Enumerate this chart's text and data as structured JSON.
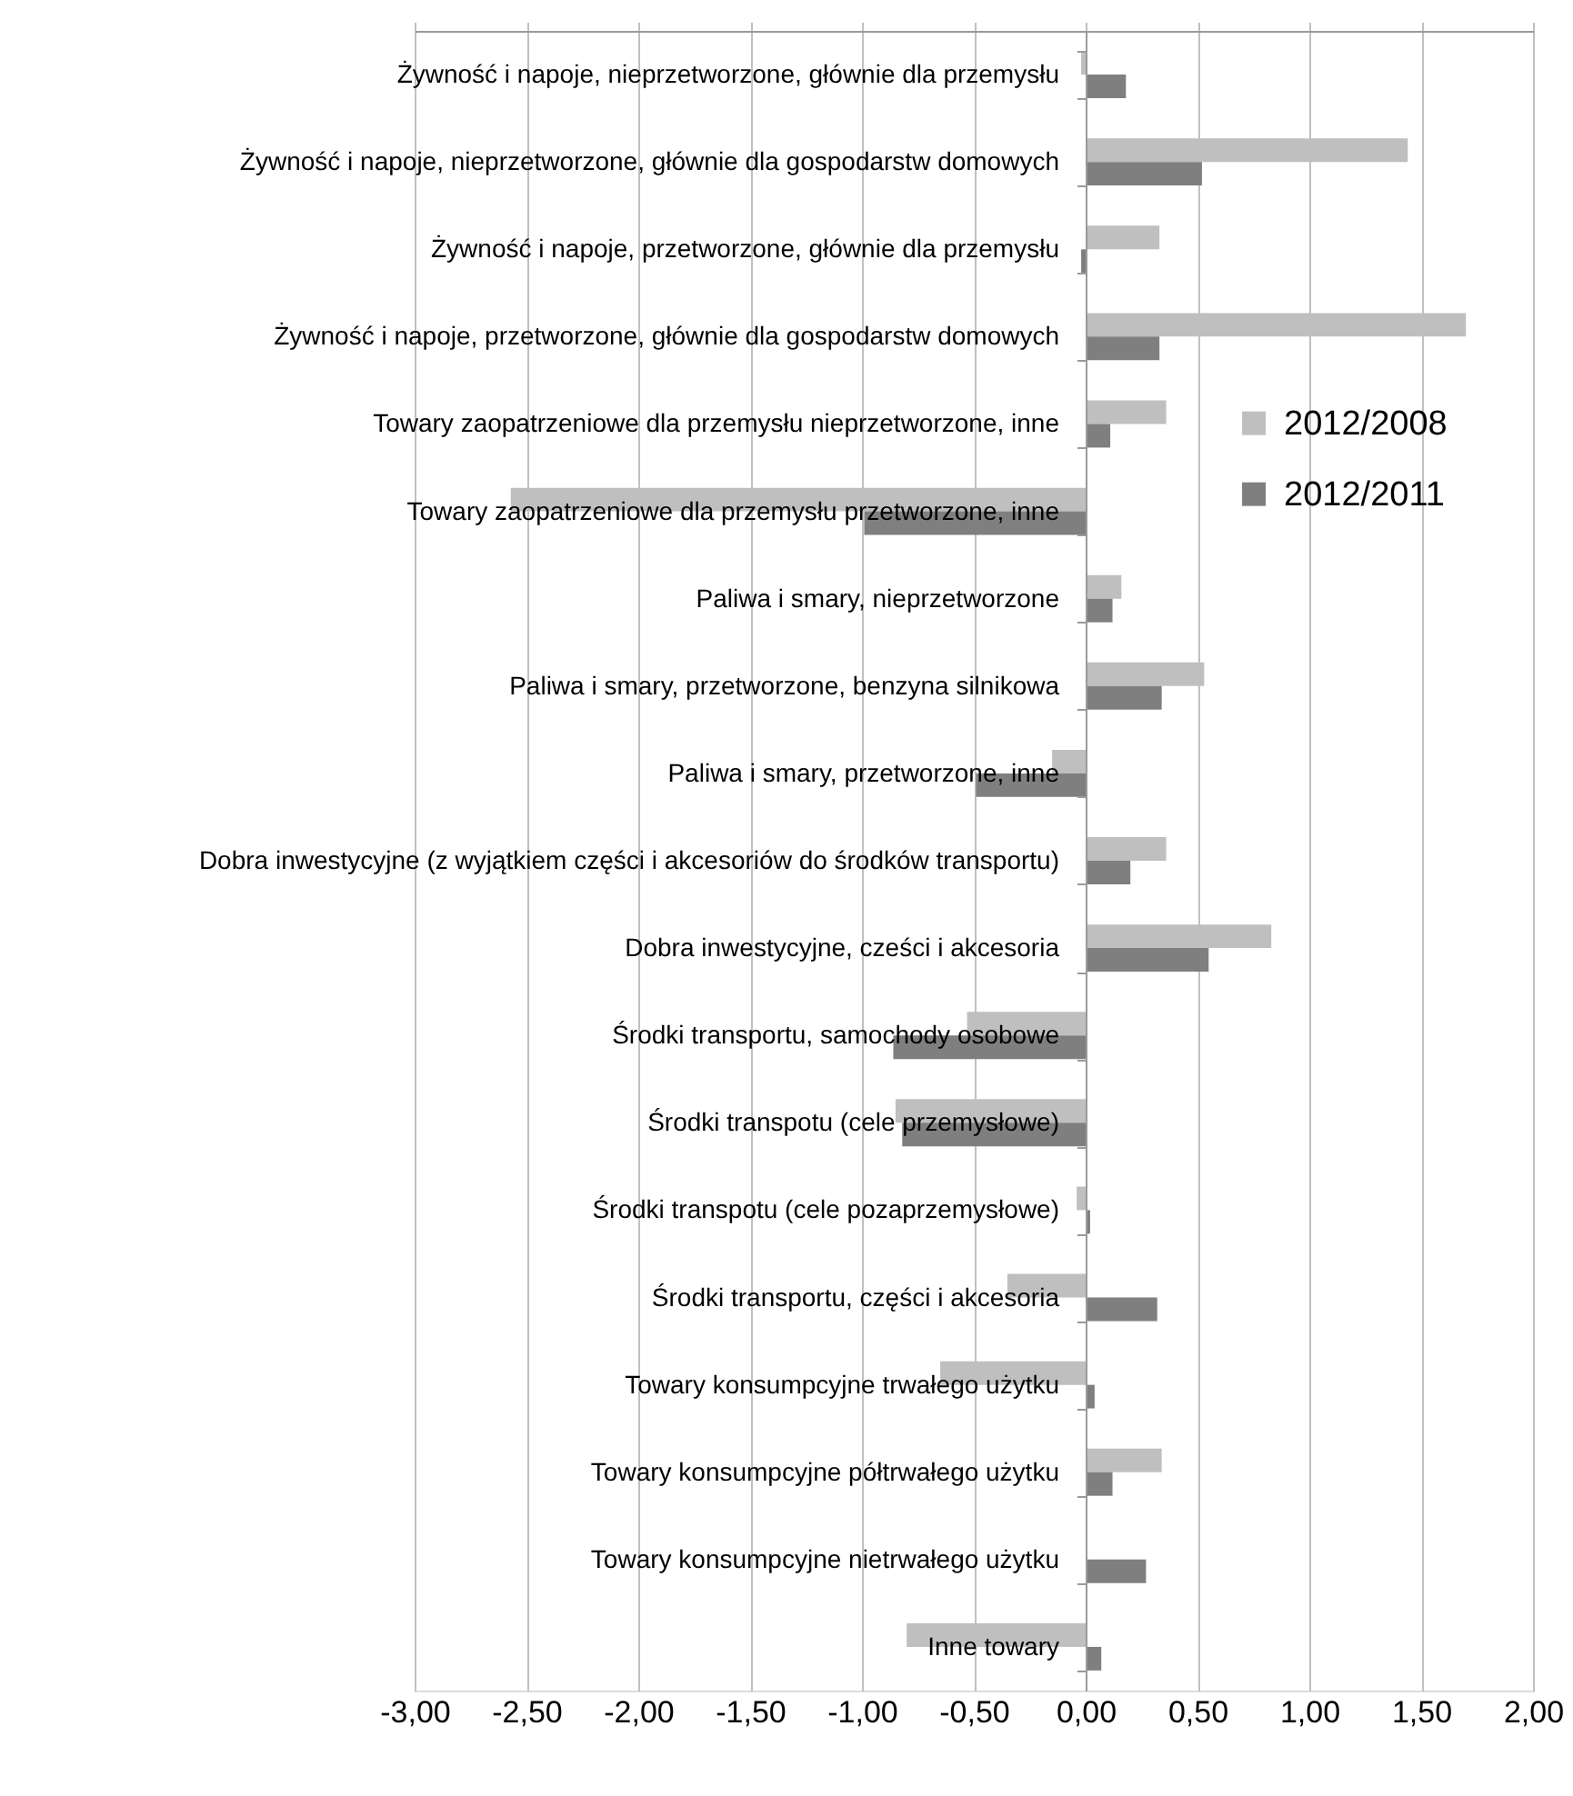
{
  "chart_data": {
    "type": "bar",
    "orientation": "horizontal",
    "categories": [
      "Żywność i napoje, nieprzetworzone, głównie dla przemysłu",
      "Żywność i napoje, nieprzetworzone, głównie dla gospodarstw domowych",
      "Żywność i napoje, przetworzone, głównie dla przemysłu",
      "Żywność i napoje, przetworzone, głównie dla gospodarstw domowych",
      "Towary zaopatrzeniowe dla przemysłu  nieprzetworzone, inne",
      "Towary zaopatrzeniowe dla przemysłu przetworzone, inne",
      "Paliwa i smary, nieprzetworzone",
      "Paliwa i smary, przetworzone, benzyna silnikowa",
      "Paliwa i smary, przetworzone, inne",
      "Dobra inwestycyjne  (z wyjątkiem części i akcesoriów do środków transportu)",
      "Dobra inwestycyjne, cześci i akcesoria",
      "Środki transportu, samochody osobowe",
      "Środki transpotu (cele przemysłowe)",
      "Środki transpotu (cele pozaprzemysłowe)",
      "Środki transportu, części i akcesoria",
      "Towary konsumpcyjne trwałego użytku",
      "Towary konsumpcyjne półtrwałego użytku",
      "Towary konsumpcyjne nietrwałego użytku",
      "Inne towary"
    ],
    "series": [
      {
        "name": "2012/2008",
        "color": "#bfbfbf",
        "values": [
          -0.02,
          1.44,
          0.33,
          1.7,
          0.36,
          -2.57,
          0.16,
          0.53,
          -0.15,
          0.36,
          0.83,
          -0.53,
          -0.85,
          -0.04,
          -0.35,
          -0.65,
          0.34,
          0.0,
          -0.8
        ]
      },
      {
        "name": "2012/2011",
        "color": "#7f7f7f",
        "values": [
          0.18,
          0.52,
          -0.02,
          0.33,
          0.11,
          -0.99,
          0.12,
          0.34,
          -0.49,
          0.2,
          0.55,
          -0.86,
          -0.82,
          0.02,
          0.32,
          0.04,
          0.12,
          0.27,
          0.07
        ]
      }
    ],
    "xlim": [
      -3,
      2
    ],
    "xticks": [
      {
        "value": -3,
        "label": "-3,00"
      },
      {
        "value": -2.5,
        "label": "-2,50"
      },
      {
        "value": -2,
        "label": "-2,00"
      },
      {
        "value": -1.5,
        "label": "-1,50"
      },
      {
        "value": -1,
        "label": "-1,00"
      },
      {
        "value": -0.5,
        "label": "-0,50"
      },
      {
        "value": 0,
        "label": "0,00"
      },
      {
        "value": 0.5,
        "label": "0,50"
      },
      {
        "value": 1,
        "label": "1,00"
      },
      {
        "value": 1.5,
        "label": "1,50"
      },
      {
        "value": 2,
        "label": "2,00"
      }
    ],
    "grid": "x",
    "legend": "top right"
  }
}
